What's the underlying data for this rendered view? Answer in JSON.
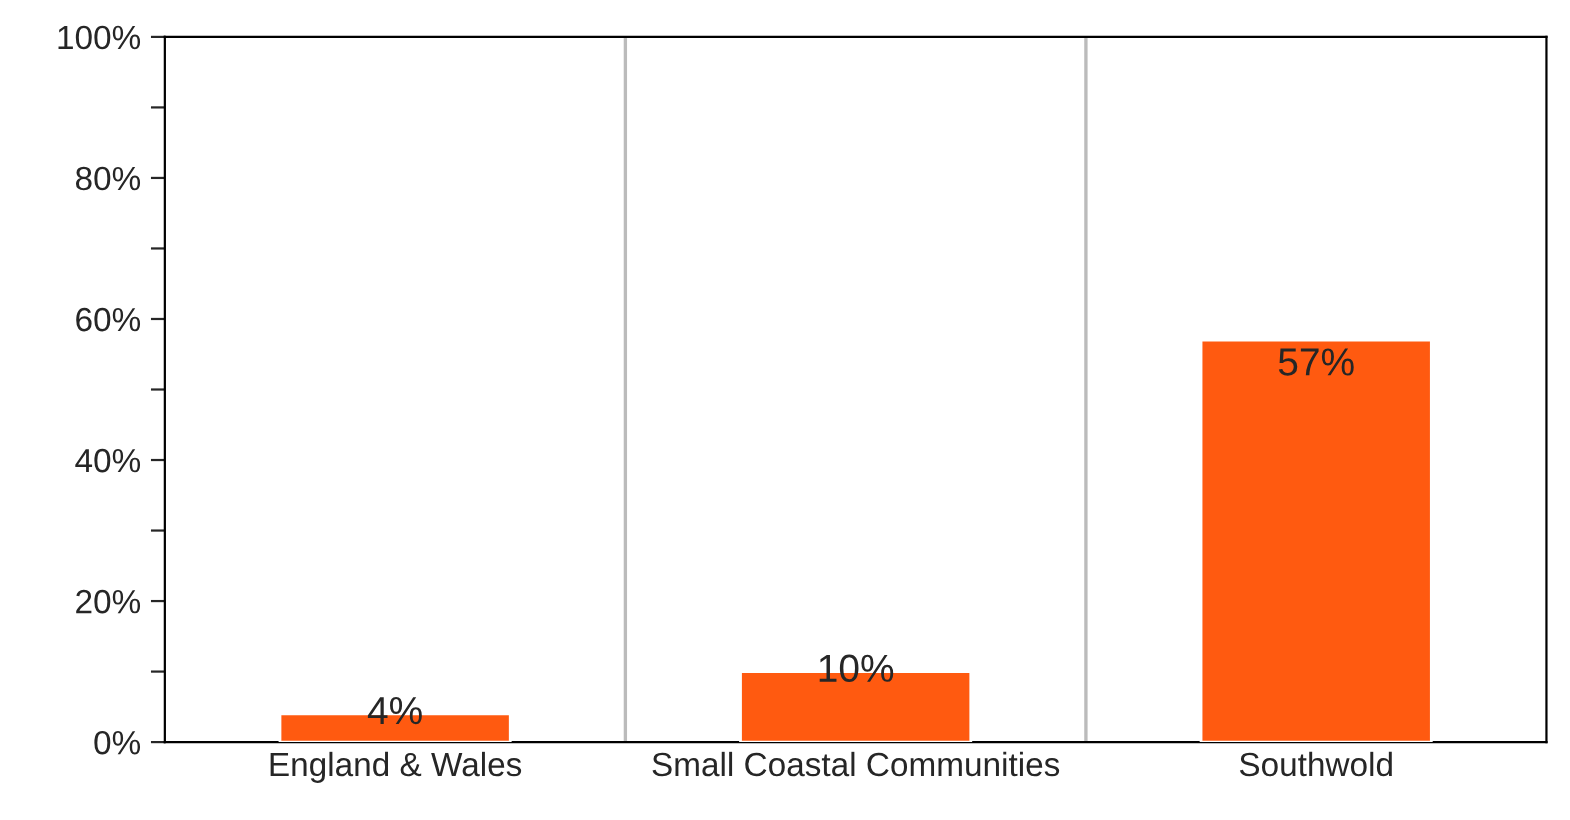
{
  "chart_data": {
    "type": "bar",
    "categories": [
      "England & Wales",
      "Small Coastal Communities",
      "Southwold"
    ],
    "values": [
      4,
      10,
      57
    ],
    "value_labels": [
      "4%",
      "10%",
      "57%"
    ],
    "color": "#ff5a10",
    "ylim": [
      0,
      100
    ],
    "yticks": [
      {
        "value": 0,
        "label": "0%"
      },
      {
        "value": 10,
        "label": null
      },
      {
        "value": 20,
        "label": "20%"
      },
      {
        "value": 30,
        "label": null
      },
      {
        "value": 40,
        "label": "40%"
      },
      {
        "value": 50,
        "label": null
      },
      {
        "value": 60,
        "label": "60%"
      },
      {
        "value": 70,
        "label": null
      },
      {
        "value": 80,
        "label": "80%"
      },
      {
        "value": 90,
        "label": null
      },
      {
        "value": 100,
        "label": "100%"
      }
    ],
    "grid": "x",
    "legend": false
  }
}
